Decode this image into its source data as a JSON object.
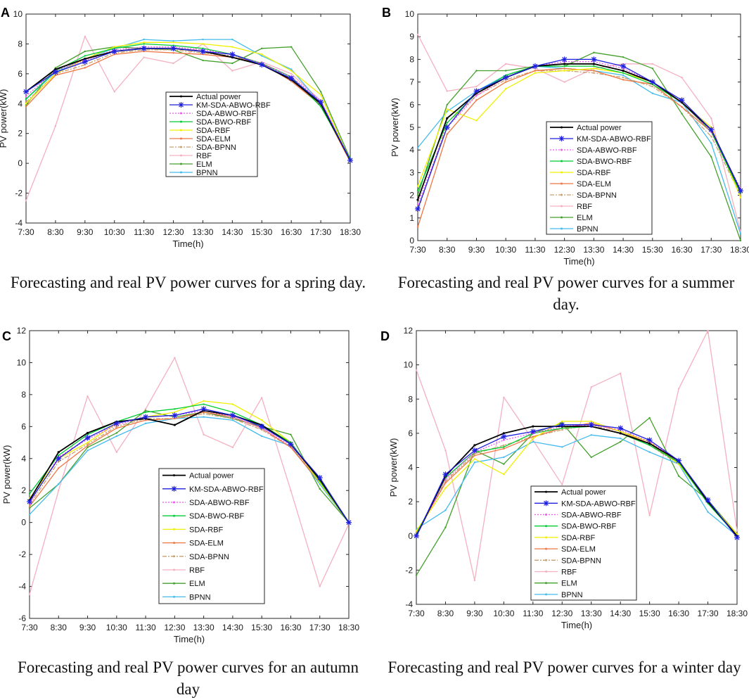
{
  "chart_data": [
    {
      "type": "line",
      "letter": "A",
      "caption": "Forecasting and real PV power curves for a spring day.",
      "xlabel": "Time(h)",
      "ylabel": "PV power(kW)",
      "x": [
        "7:30",
        "8:30",
        "9:30",
        "10:30",
        "11:30",
        "12:30",
        "13:30",
        "14:30",
        "15:30",
        "16:30",
        "17:30",
        "18:30"
      ],
      "ylim": [
        -4,
        10
      ],
      "yticks": [
        -4,
        -2,
        0,
        2,
        4,
        6,
        8,
        10
      ],
      "series": [
        {
          "name": "Actual power",
          "color": "#000000",
          "values": [
            4.8,
            6.3,
            7.0,
            7.5,
            7.7,
            7.7,
            7.5,
            7.1,
            6.6,
            5.6,
            4.0,
            0.2
          ]
        },
        {
          "name": "KM-SDA-ABWO-RBF",
          "color": "#1f1fe0",
          "values": [
            4.8,
            6.1,
            6.8,
            7.5,
            7.7,
            7.7,
            7.5,
            7.3,
            6.6,
            5.7,
            4.1,
            0.2
          ]
        },
        {
          "name": "SDA-ABWO-RBF",
          "color": "#ee55ee",
          "values": [
            4.5,
            6.2,
            6.9,
            7.6,
            7.8,
            7.8,
            7.6,
            7.3,
            6.7,
            5.8,
            4.2,
            0.2
          ]
        },
        {
          "name": "SDA-BWO-RBF",
          "color": "#00cc33",
          "values": [
            4.3,
            6.2,
            7.2,
            7.7,
            8.0,
            7.9,
            7.7,
            7.3,
            6.7,
            5.8,
            3.8,
            0.3
          ]
        },
        {
          "name": "SDA-RBF",
          "color": "#f0f000",
          "values": [
            4.0,
            6.0,
            7.0,
            7.8,
            8.1,
            8.1,
            8.0,
            7.8,
            7.3,
            6.2,
            4.6,
            0.1
          ]
        },
        {
          "name": "SDA-ELM",
          "color": "#ee7744",
          "values": [
            3.8,
            5.9,
            6.4,
            7.3,
            7.5,
            7.4,
            7.3,
            7.1,
            6.7,
            5.5,
            3.9,
            0.1
          ]
        },
        {
          "name": "SDA-BPNN",
          "color": "#c8a070",
          "values": [
            4.1,
            6.0,
            6.6,
            7.4,
            7.6,
            7.6,
            7.4,
            7.2,
            6.7,
            5.7,
            4.0,
            0.3
          ]
        },
        {
          "name": "RBF",
          "color": "#f4b0c0",
          "values": [
            -2.5,
            2.5,
            8.5,
            4.8,
            7.1,
            6.7,
            8.0,
            6.2,
            6.8,
            6.0,
            4.2,
            0.2
          ]
        },
        {
          "name": "ELM",
          "color": "#44a02c",
          "values": [
            3.9,
            6.4,
            7.5,
            7.8,
            7.7,
            7.6,
            6.9,
            6.7,
            7.7,
            7.8,
            4.8,
            0.3
          ]
        },
        {
          "name": "BPNN",
          "color": "#44bbee",
          "values": [
            4.3,
            6.1,
            7.0,
            7.7,
            8.3,
            8.2,
            8.3,
            8.3,
            7.2,
            6.3,
            4.0,
            0.1
          ]
        }
      ]
    },
    {
      "type": "line",
      "letter": "B",
      "caption": "Forecasting and real PV power curves for a summer day.",
      "xlabel": "Time(h)",
      "ylabel": "PV power(kW)",
      "x": [
        "7:30",
        "8:30",
        "9:30",
        "10:30",
        "11:30",
        "12:30",
        "13:30",
        "14:30",
        "15:30",
        "16:30",
        "17:30",
        "18:30"
      ],
      "ylim": [
        0,
        10
      ],
      "yticks": [
        0,
        1,
        2,
        3,
        4,
        5,
        6,
        7,
        8,
        9,
        10
      ],
      "series": [
        {
          "name": "Actual power",
          "color": "#000000",
          "values": [
            1.8,
            5.4,
            6.5,
            7.2,
            7.7,
            7.8,
            7.8,
            7.5,
            7.0,
            6.1,
            4.9,
            2.2
          ]
        },
        {
          "name": "KM-SDA-ABWO-RBF",
          "color": "#1f1fe0",
          "values": [
            1.4,
            5.0,
            6.6,
            7.2,
            7.7,
            8.0,
            8.0,
            7.7,
            7.0,
            6.2,
            4.9,
            2.2
          ]
        },
        {
          "name": "SDA-ABWO-RBF",
          "color": "#ee55ee",
          "values": [
            1.6,
            5.0,
            6.4,
            7.2,
            7.7,
            7.9,
            7.9,
            7.6,
            7.0,
            6.1,
            4.8,
            2.3
          ]
        },
        {
          "name": "SDA-BWO-RBF",
          "color": "#00cc33",
          "values": [
            2.2,
            5.2,
            6.5,
            7.3,
            7.7,
            7.7,
            7.7,
            7.4,
            6.9,
            6.1,
            4.8,
            2.1
          ]
        },
        {
          "name": "SDA-RBF",
          "color": "#f0f000",
          "values": [
            2.4,
            5.8,
            5.3,
            6.7,
            7.4,
            7.5,
            7.6,
            7.4,
            7.0,
            6.1,
            5.0,
            1.9
          ]
        },
        {
          "name": "SDA-ELM",
          "color": "#ee7744",
          "values": [
            0.6,
            4.7,
            6.2,
            7.0,
            7.5,
            7.6,
            7.5,
            7.1,
            6.9,
            5.9,
            4.8,
            2.1
          ]
        },
        {
          "name": "SDA-BPNN",
          "color": "#c8a070",
          "values": [
            1.3,
            5.2,
            6.4,
            7.1,
            7.5,
            7.5,
            7.4,
            7.2,
            6.8,
            5.9,
            4.6,
            2.0
          ]
        },
        {
          "name": "RBF",
          "color": "#f4b0c0",
          "values": [
            9.1,
            6.6,
            6.8,
            7.8,
            7.6,
            7.0,
            7.6,
            7.8,
            7.8,
            7.2,
            5.4,
            0.4
          ]
        },
        {
          "name": "ELM",
          "color": "#44a02c",
          "values": [
            2.0,
            6.0,
            7.5,
            7.5,
            7.7,
            7.7,
            8.3,
            8.1,
            7.6,
            5.6,
            3.7,
            0.0
          ]
        },
        {
          "name": "BPNN",
          "color": "#44bbee",
          "values": [
            4.1,
            5.7,
            6.6,
            7.3,
            7.7,
            7.6,
            7.5,
            7.3,
            6.5,
            6.1,
            4.3,
            0.3
          ]
        }
      ]
    },
    {
      "type": "line",
      "letter": "C",
      "caption": "Forecasting and real PV power curves for an autumn day",
      "xlabel": "Time(h)",
      "ylabel": "PV power(kW)",
      "x": [
        "7:30",
        "8:30",
        "9:30",
        "10:30",
        "11:30",
        "12:30",
        "13:30",
        "14:30",
        "15:30",
        "16:30",
        "17:30",
        "18:30"
      ],
      "ylim": [
        -6,
        12
      ],
      "yticks": [
        -6,
        -4,
        -2,
        0,
        2,
        4,
        6,
        8,
        10,
        12
      ],
      "series": [
        {
          "name": "Actual power",
          "color": "#000000",
          "values": [
            1.4,
            4.4,
            5.6,
            6.3,
            6.5,
            6.1,
            7.0,
            6.7,
            6.1,
            4.9,
            2.7,
            0.0
          ]
        },
        {
          "name": "KM-SDA-ABWO-RBF",
          "color": "#1f1fe0",
          "values": [
            1.3,
            4.0,
            5.3,
            6.2,
            6.6,
            6.7,
            7.1,
            6.7,
            6.0,
            4.9,
            2.8,
            0.0
          ]
        },
        {
          "name": "SDA-ABWO-RBF",
          "color": "#ee55ee",
          "values": [
            1.2,
            4.1,
            5.2,
            6.1,
            6.6,
            6.7,
            7.0,
            6.6,
            5.9,
            4.8,
            2.7,
            0.0
          ]
        },
        {
          "name": "SDA-BWO-RBF",
          "color": "#00cc33",
          "values": [
            1.8,
            4.2,
            5.5,
            6.3,
            6.9,
            7.1,
            7.4,
            6.9,
            6.1,
            5.0,
            2.6,
            0.0
          ]
        },
        {
          "name": "SDA-RBF",
          "color": "#f0f000",
          "values": [
            1.5,
            4.0,
            5.0,
            6.2,
            6.6,
            6.9,
            7.6,
            7.4,
            6.4,
            5.0,
            2.5,
            0.0
          ]
        },
        {
          "name": "SDA-ELM",
          "color": "#ee7744",
          "values": [
            1.0,
            3.4,
            4.8,
            5.9,
            6.4,
            6.5,
            6.9,
            6.6,
            5.9,
            4.7,
            2.5,
            0.0
          ]
        },
        {
          "name": "SDA-BPNN",
          "color": "#c8a070",
          "values": [
            1.1,
            3.8,
            4.9,
            6.0,
            6.5,
            6.5,
            6.8,
            6.5,
            5.8,
            4.7,
            2.6,
            0.0
          ]
        },
        {
          "name": "RBF",
          "color": "#f4b0c0",
          "values": [
            -4.5,
            2.0,
            7.9,
            4.4,
            7.1,
            10.3,
            5.5,
            4.7,
            7.8,
            2.0,
            -4.0,
            -0.1
          ]
        },
        {
          "name": "ELM",
          "color": "#44a02c",
          "values": [
            0.9,
            2.4,
            4.7,
            5.6,
            7.0,
            6.6,
            6.9,
            6.5,
            6.0,
            5.5,
            2.1,
            0.0
          ]
        },
        {
          "name": "BPNN",
          "color": "#44bbee",
          "values": [
            0.5,
            2.4,
            4.5,
            5.4,
            6.2,
            6.5,
            6.6,
            6.4,
            5.4,
            4.8,
            2.4,
            0.0
          ]
        }
      ]
    },
    {
      "type": "line",
      "letter": "D",
      "caption": "Forecasting and real PV power curves for a winter day",
      "xlabel": "Time(h)",
      "ylabel": "PV power(kW)",
      "x": [
        "7:30",
        "8:30",
        "9:30",
        "10:30",
        "11:30",
        "12:30",
        "13:30",
        "14:30",
        "15:30",
        "16:30",
        "17:30",
        "18:30"
      ],
      "ylim": [
        -4,
        12
      ],
      "yticks": [
        -4,
        -2,
        0,
        2,
        4,
        6,
        8,
        10,
        12
      ],
      "series": [
        {
          "name": "Actual power",
          "color": "#000000",
          "values": [
            0.0,
            3.5,
            5.3,
            6.0,
            6.4,
            6.4,
            6.4,
            6.0,
            5.4,
            4.4,
            2.0,
            0.0
          ]
        },
        {
          "name": "KM-SDA-ABWO-RBF",
          "color": "#1f1fe0",
          "values": [
            0.0,
            3.6,
            5.0,
            5.8,
            6.1,
            6.5,
            6.5,
            6.3,
            5.6,
            4.4,
            2.1,
            -0.1
          ]
        },
        {
          "name": "SDA-ABWO-RBF",
          "color": "#ee55ee",
          "values": [
            0.0,
            3.3,
            4.9,
            5.6,
            6.0,
            6.4,
            6.5,
            6.2,
            5.5,
            4.4,
            2.0,
            0.0
          ]
        },
        {
          "name": "SDA-BWO-RBF",
          "color": "#00cc33",
          "values": [
            0.1,
            3.4,
            4.9,
            5.2,
            6.0,
            6.3,
            6.4,
            6.0,
            5.3,
            4.3,
            1.9,
            0.0
          ]
        },
        {
          "name": "SDA-RBF",
          "color": "#f0f000",
          "values": [
            0.3,
            2.8,
            4.5,
            3.6,
            5.7,
            6.7,
            6.7,
            6.1,
            5.5,
            4.2,
            2.0,
            0.1
          ]
        },
        {
          "name": "SDA-ELM",
          "color": "#ee7744",
          "values": [
            0.2,
            3.1,
            4.7,
            5.1,
            5.8,
            6.3,
            6.6,
            6.1,
            5.4,
            4.3,
            2.0,
            0.1
          ]
        },
        {
          "name": "SDA-BPNN",
          "color": "#c8a070",
          "values": [
            0.1,
            3.2,
            4.8,
            5.3,
            5.8,
            6.2,
            6.5,
            6.0,
            5.3,
            4.2,
            2.0,
            0.0
          ]
        },
        {
          "name": "RBF",
          "color": "#f4b0c0",
          "values": [
            9.7,
            5.0,
            -2.6,
            8.1,
            5.6,
            3.0,
            8.7,
            9.5,
            1.2,
            8.6,
            12.0,
            0.3
          ]
        },
        {
          "name": "ELM",
          "color": "#44a02c",
          "values": [
            -2.3,
            0.5,
            5.0,
            4.2,
            6.0,
            6.6,
            4.6,
            5.5,
            6.9,
            3.5,
            2.1,
            0.1
          ]
        },
        {
          "name": "BPNN",
          "color": "#44bbee",
          "values": [
            0.4,
            1.5,
            4.3,
            4.6,
            5.5,
            5.2,
            5.9,
            5.7,
            4.9,
            4.2,
            1.4,
            0.0
          ]
        }
      ]
    }
  ]
}
